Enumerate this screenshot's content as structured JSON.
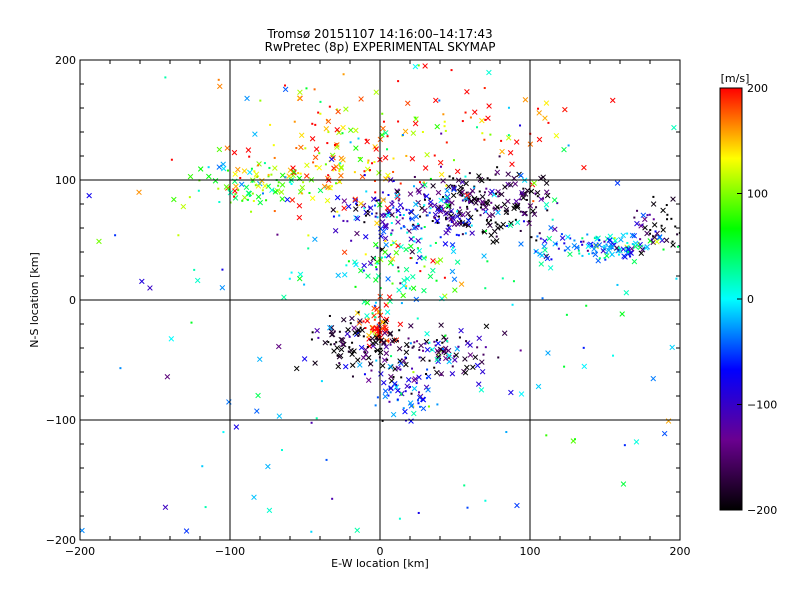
{
  "chart_data": {
    "type": "scatter",
    "title": "Tromsø 20151107 14:16:00–14:17:43",
    "subtitle": "RwPretec (8p) EXPERIMENTAL SKYMAP",
    "xlabel": "E-W location [km]",
    "ylabel": "N-S location [km]",
    "xlim": [
      -200,
      200
    ],
    "ylim": [
      -200,
      200
    ],
    "xticks": [
      -200,
      -100,
      0,
      100,
      200
    ],
    "yticks": [
      -200,
      -100,
      0,
      100,
      200
    ],
    "grid_lines": [
      -100,
      0,
      100
    ],
    "markers": [
      "x",
      "."
    ],
    "colorbar": {
      "unit": "[m/s]",
      "range": [
        -200,
        200
      ],
      "ticks": [
        -200,
        -100,
        0,
        100,
        200
      ],
      "colormap": [
        "#000000",
        "#6a0090",
        "#0000ff",
        "#00ffff",
        "#00ff00",
        "#ffff00",
        "#ff0000"
      ]
    },
    "clusters": [
      {
        "x": 70,
        "y": 78,
        "sx": 25,
        "sy": 14,
        "n": 220,
        "vel": -180
      },
      {
        "x": 20,
        "y": 72,
        "sx": 25,
        "sy": 10,
        "n": 150,
        "vel": -80
      },
      {
        "x": -85,
        "y": 95,
        "sx": 22,
        "sy": 8,
        "n": 90,
        "vel": 90
      },
      {
        "x": -30,
        "y": 110,
        "sx": 25,
        "sy": 20,
        "n": 90,
        "vel": 150
      },
      {
        "x": 150,
        "y": 45,
        "sx": 25,
        "sy": 6,
        "n": 140,
        "vel": -30
      },
      {
        "x": 185,
        "y": 60,
        "sx": 10,
        "sy": 12,
        "n": 40,
        "vel": -200
      },
      {
        "x": 0,
        "y": -22,
        "sx": 5,
        "sy": 10,
        "n": 60,
        "vel": 190
      },
      {
        "x": -15,
        "y": -40,
        "sx": 18,
        "sy": 14,
        "n": 110,
        "vel": -190
      },
      {
        "x": 40,
        "y": -45,
        "sx": 22,
        "sy": 12,
        "n": 90,
        "vel": -150
      },
      {
        "x": 20,
        "y": -78,
        "sx": 10,
        "sy": 10,
        "n": 60,
        "vel": -60
      },
      {
        "x": 10,
        "y": 25,
        "sx": 25,
        "sy": 20,
        "n": 110,
        "vel": 20
      },
      {
        "x": 60,
        "y": 140,
        "sx": 35,
        "sy": 30,
        "n": 70,
        "vel": 170
      },
      {
        "x": -40,
        "y": 140,
        "sx": 40,
        "sy": 25,
        "n": 50,
        "vel": 180
      },
      {
        "x": 0,
        "y": 0,
        "sx": 120,
        "sy": 120,
        "n": 180,
        "vel": 0
      }
    ]
  }
}
